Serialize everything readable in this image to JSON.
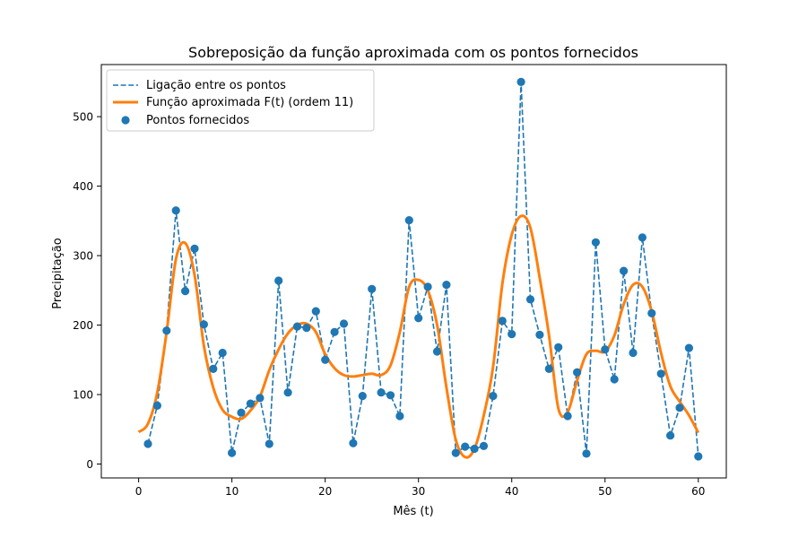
{
  "chart_data": {
    "type": "line",
    "title": "Sobreposição da função aproximada com os pontos fornecidos",
    "xlabel": "Mês (t)",
    "ylabel": "Precipitação",
    "xlim": [
      -4,
      63
    ],
    "ylim": [
      -20,
      575
    ],
    "x_ticks": [
      0,
      10,
      20,
      30,
      40,
      50,
      60
    ],
    "y_ticks": [
      0,
      100,
      200,
      300,
      400,
      500
    ],
    "grid": false,
    "legend_position": "top-left",
    "legend": [
      {
        "name": "Ligação entre os pontos",
        "style": "dashed-line",
        "color": "#1f77b4"
      },
      {
        "name": "Função aproximada F(t) (ordem 11)",
        "style": "solid-line",
        "color": "#ff7f0e"
      },
      {
        "name": "Pontos fornecidos",
        "style": "marker",
        "color": "#1f77b4"
      }
    ],
    "series": [
      {
        "kind": "points",
        "color": "#1f77b4",
        "x": [
          1,
          2,
          3,
          4,
          5,
          6,
          7,
          8,
          9,
          10,
          11,
          12,
          13,
          14,
          15,
          16,
          17,
          18,
          19,
          20,
          21,
          22,
          23,
          24,
          25,
          26,
          27,
          28,
          29,
          30,
          31,
          32,
          33,
          34,
          35,
          36,
          37,
          38,
          39,
          40,
          41,
          42,
          43,
          44,
          45,
          46,
          47,
          48,
          49,
          50,
          51,
          52,
          53,
          54,
          55,
          56,
          57,
          58,
          59,
          60
        ],
        "y": [
          29,
          84,
          192,
          365,
          249,
          310,
          201,
          137,
          160,
          16,
          74,
          87,
          95,
          29,
          264,
          103,
          198,
          196,
          220,
          150,
          190,
          202,
          30,
          98,
          252,
          103,
          99,
          69,
          351,
          210,
          255,
          162,
          258,
          16,
          25,
          22,
          26,
          98,
          206,
          187,
          550,
          237,
          186,
          137,
          168,
          69,
          132,
          15,
          319,
          165,
          122,
          278,
          160,
          326,
          217,
          130,
          41,
          81,
          167,
          11
        ]
      },
      {
        "kind": "curve",
        "color": "#ff7f0e",
        "x": [
          0,
          1,
          2,
          3,
          4,
          5,
          6,
          7,
          8,
          9,
          10,
          11,
          12,
          13,
          14,
          15,
          16,
          17,
          18,
          19,
          20,
          21,
          22,
          23,
          24,
          25,
          26,
          27,
          28,
          29,
          30,
          31,
          32,
          33,
          34,
          35,
          36,
          37,
          38,
          39,
          40,
          41,
          42,
          43,
          44,
          45,
          46,
          47,
          48,
          49,
          50,
          51,
          52,
          53,
          54,
          55,
          56,
          57,
          58,
          59,
          60
        ],
        "y": [
          46,
          58,
          103,
          190,
          295,
          318,
          272,
          170,
          110,
          78,
          68,
          65,
          77,
          97,
          135,
          165,
          188,
          200,
          202,
          190,
          158,
          138,
          128,
          126,
          128,
          130,
          128,
          142,
          190,
          255,
          265,
          250,
          200,
          110,
          35,
          10,
          22,
          70,
          140,
          260,
          330,
          357,
          340,
          268,
          185,
          80,
          75,
          120,
          158,
          163,
          162,
          185,
          230,
          258,
          255,
          220,
          160,
          112,
          90,
          70,
          45
        ]
      }
    ]
  }
}
